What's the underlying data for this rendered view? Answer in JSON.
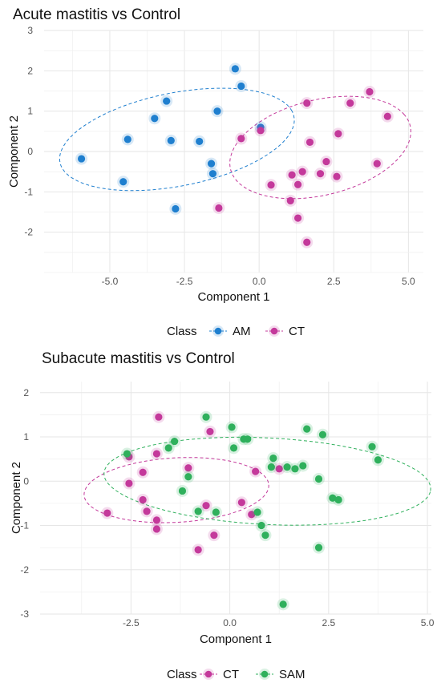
{
  "chart_data": [
    {
      "type": "scatter",
      "title": "Acute mastitis vs Control",
      "xlabel": "Component 1",
      "ylabel": "Component 2",
      "xlim": [
        -7.2,
        5.5
      ],
      "ylim": [
        -3,
        3
      ],
      "x_ticks": [
        -5.0,
        -2.5,
        0.0,
        2.5,
        5.0
      ],
      "x_tick_labels": [
        "-5.0",
        "-2.5",
        "0.0",
        "2.5",
        "5.0"
      ],
      "y_ticks": [
        -2,
        -1,
        0,
        1,
        2,
        3
      ],
      "y_tick_labels": [
        "-2",
        "-1",
        "0",
        "1",
        "2",
        "3"
      ],
      "grid": true,
      "legend_title": "Class",
      "legend_position": "bottom",
      "series": [
        {
          "name": "AM",
          "color": "#1f7fcf",
          "points": [
            [
              -0.8,
              2.05
            ],
            [
              -0.6,
              1.62
            ],
            [
              -3.1,
              1.25
            ],
            [
              -1.4,
              1.0
            ],
            [
              -3.5,
              0.82
            ],
            [
              0.05,
              0.6
            ],
            [
              -4.4,
              0.3
            ],
            [
              -2.95,
              0.27
            ],
            [
              -2.0,
              0.25
            ],
            [
              -1.6,
              -0.3
            ],
            [
              -1.55,
              -0.55
            ],
            [
              -5.95,
              -0.18
            ],
            [
              -4.55,
              -0.75
            ],
            [
              -2.8,
              -1.42
            ]
          ],
          "ellipse": {
            "cx": -2.75,
            "cy": 0.3,
            "rx": 4.1,
            "ry": 2.25,
            "angle_deg": 20
          }
        },
        {
          "name": "CT",
          "color": "#c4399b",
          "points": [
            [
              3.7,
              1.48
            ],
            [
              3.05,
              1.2
            ],
            [
              1.6,
              1.2
            ],
            [
              4.3,
              0.87
            ],
            [
              0.05,
              0.52
            ],
            [
              -0.6,
              0.32
            ],
            [
              2.65,
              0.44
            ],
            [
              1.7,
              0.23
            ],
            [
              2.25,
              -0.25
            ],
            [
              1.45,
              -0.5
            ],
            [
              1.1,
              -0.58
            ],
            [
              2.05,
              -0.55
            ],
            [
              2.6,
              -0.62
            ],
            [
              3.95,
              -0.3
            ],
            [
              0.4,
              -0.83
            ],
            [
              1.3,
              -0.82
            ],
            [
              1.05,
              -1.22
            ],
            [
              -1.35,
              -1.4
            ],
            [
              1.3,
              -1.65
            ],
            [
              1.6,
              -2.25
            ]
          ],
          "ellipse": {
            "cx": 2.05,
            "cy": 0.1,
            "rx": 3.25,
            "ry": 2.25,
            "angle_deg": 30
          }
        }
      ]
    },
    {
      "type": "scatter",
      "title": "Subacute mastitis vs Control",
      "xlabel": "Component 1",
      "ylabel": "Component 2",
      "xlim": [
        -4.8,
        5.1
      ],
      "ylim": [
        -3,
        2.25
      ],
      "x_ticks": [
        -2.5,
        0.0,
        2.5,
        5.0
      ],
      "x_tick_labels": [
        "-2.5",
        "0.0",
        "2.5",
        "5.0"
      ],
      "y_ticks": [
        -3,
        -2,
        -1,
        0,
        1,
        2
      ],
      "y_tick_labels": [
        "-3",
        "-2",
        "-1",
        "0",
        "1",
        "2"
      ],
      "grid": true,
      "legend_title": "Class",
      "legend_position": "bottom",
      "series": [
        {
          "name": "CT",
          "color": "#c4399b",
          "points": [
            [
              -1.8,
              1.45
            ],
            [
              -0.5,
              1.12
            ],
            [
              -1.85,
              0.62
            ],
            [
              -2.55,
              0.55
            ],
            [
              -1.05,
              0.3
            ],
            [
              -2.2,
              0.2
            ],
            [
              0.65,
              0.22
            ],
            [
              1.25,
              0.28
            ],
            [
              -2.55,
              -0.05
            ],
            [
              -2.2,
              -0.42
            ],
            [
              -2.1,
              -0.68
            ],
            [
              0.3,
              -0.48
            ],
            [
              -0.6,
              -0.55
            ],
            [
              -3.1,
              -0.72
            ],
            [
              -1.85,
              -0.88
            ],
            [
              0.55,
              -0.75
            ],
            [
              -1.85,
              -1.08
            ],
            [
              -0.4,
              -1.22
            ],
            [
              -0.8,
              -1.55
            ]
          ],
          "ellipse": {
            "cx": -1.35,
            "cy": -0.2,
            "rx": 2.35,
            "ry": 1.45,
            "angle_deg": 8
          }
        },
        {
          "name": "SAM",
          "color": "#2fb05c",
          "points": [
            [
              -0.6,
              1.45
            ],
            [
              0.05,
              1.22
            ],
            [
              1.95,
              1.18
            ],
            [
              2.35,
              1.05
            ],
            [
              -1.4,
              0.9
            ],
            [
              0.35,
              0.95
            ],
            [
              0.45,
              0.95
            ],
            [
              -1.55,
              0.75
            ],
            [
              0.1,
              0.75
            ],
            [
              3.6,
              0.78
            ],
            [
              -2.6,
              0.62
            ],
            [
              1.1,
              0.52
            ],
            [
              3.75,
              0.48
            ],
            [
              1.05,
              0.32
            ],
            [
              1.45,
              0.32
            ],
            [
              1.65,
              0.28
            ],
            [
              1.85,
              0.35
            ],
            [
              2.25,
              0.05
            ],
            [
              -1.05,
              0.1
            ],
            [
              -1.2,
              -0.22
            ],
            [
              2.6,
              -0.38
            ],
            [
              2.75,
              -0.42
            ],
            [
              -0.8,
              -0.68
            ],
            [
              -0.35,
              -0.7
            ],
            [
              0.7,
              -0.7
            ],
            [
              0.8,
              -1.0
            ],
            [
              0.9,
              -1.22
            ],
            [
              2.25,
              -1.5
            ],
            [
              1.35,
              -2.78
            ]
          ],
          "ellipse": {
            "cx": 0.95,
            "cy": 0.0,
            "rx": 4.15,
            "ry": 1.95,
            "angle_deg": -6
          }
        }
      ]
    }
  ]
}
